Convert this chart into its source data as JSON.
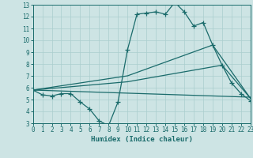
{
  "xlabel": "Humidex (Indice chaleur)",
  "xlim": [
    0,
    23
  ],
  "ylim": [
    3,
    13
  ],
  "xticks": [
    0,
    1,
    2,
    3,
    4,
    5,
    6,
    7,
    8,
    9,
    10,
    11,
    12,
    13,
    14,
    15,
    16,
    17,
    18,
    19,
    20,
    21,
    22,
    23
  ],
  "yticks": [
    3,
    4,
    5,
    6,
    7,
    8,
    9,
    10,
    11,
    12,
    13
  ],
  "background_color": "#cde4e4",
  "grid_color": "#aacece",
  "line_color": "#1a6b6b",
  "line1": {
    "x": [
      0,
      1,
      2,
      3,
      4,
      5,
      6,
      7,
      8,
      9,
      10,
      11,
      12,
      13,
      14,
      15,
      16,
      17,
      18,
      19,
      20,
      21,
      22,
      23
    ],
    "y": [
      5.8,
      5.4,
      5.3,
      5.5,
      5.5,
      4.8,
      4.2,
      3.2,
      2.8,
      4.8,
      9.2,
      12.2,
      12.3,
      12.4,
      12.2,
      13.2,
      12.4,
      11.2,
      11.5,
      9.6,
      7.9,
      6.4,
      5.5,
      4.9
    ]
  },
  "line2": {
    "x": [
      0,
      10,
      19,
      23
    ],
    "y": [
      5.8,
      7.0,
      9.6,
      5.1
    ]
  },
  "line3": {
    "x": [
      0,
      10,
      20,
      23
    ],
    "y": [
      5.8,
      6.5,
      7.9,
      5.1
    ]
  },
  "line4": {
    "x": [
      0,
      23
    ],
    "y": [
      5.8,
      5.2
    ]
  }
}
